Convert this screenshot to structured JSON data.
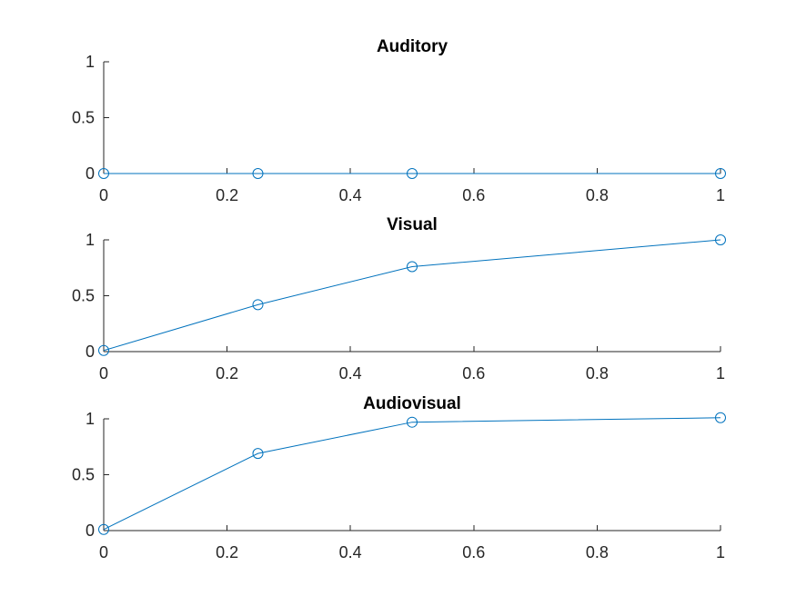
{
  "chart_data": [
    {
      "type": "line",
      "title": "Auditory",
      "xlabel": "",
      "ylabel": "",
      "xlim": [
        0,
        1
      ],
      "ylim": [
        0,
        1
      ],
      "xticks": [
        "0",
        "0.2",
        "0.4",
        "0.6",
        "0.8",
        "1"
      ],
      "yticks": [
        "0",
        "0.5",
        "1"
      ],
      "grid": false,
      "marker": "circle",
      "color": "#0072BD",
      "x": [
        0,
        0.25,
        0.5,
        1
      ],
      "y": [
        0,
        0,
        0,
        0
      ]
    },
    {
      "type": "line",
      "title": "Visual",
      "xlabel": "",
      "ylabel": "",
      "xlim": [
        0,
        1
      ],
      "ylim": [
        0,
        1
      ],
      "xticks": [
        "0",
        "0.2",
        "0.4",
        "0.6",
        "0.8",
        "1"
      ],
      "yticks": [
        "0",
        "0.5",
        "1"
      ],
      "grid": false,
      "marker": "circle",
      "color": "#0072BD",
      "x": [
        0,
        0.25,
        0.5,
        1
      ],
      "y": [
        0.01,
        0.42,
        0.76,
        1.0
      ]
    },
    {
      "type": "line",
      "title": "Audiovisual",
      "xlabel": "",
      "ylabel": "",
      "xlim": [
        0,
        1
      ],
      "ylim": [
        0,
        1
      ],
      "xticks": [
        "0",
        "0.2",
        "0.4",
        "0.6",
        "0.8",
        "1"
      ],
      "yticks": [
        "0",
        "0.5",
        "1"
      ],
      "grid": false,
      "marker": "circle",
      "color": "#0072BD",
      "x": [
        0,
        0.25,
        0.5,
        1
      ],
      "y": [
        0.01,
        0.69,
        0.97,
        1.01
      ]
    }
  ]
}
